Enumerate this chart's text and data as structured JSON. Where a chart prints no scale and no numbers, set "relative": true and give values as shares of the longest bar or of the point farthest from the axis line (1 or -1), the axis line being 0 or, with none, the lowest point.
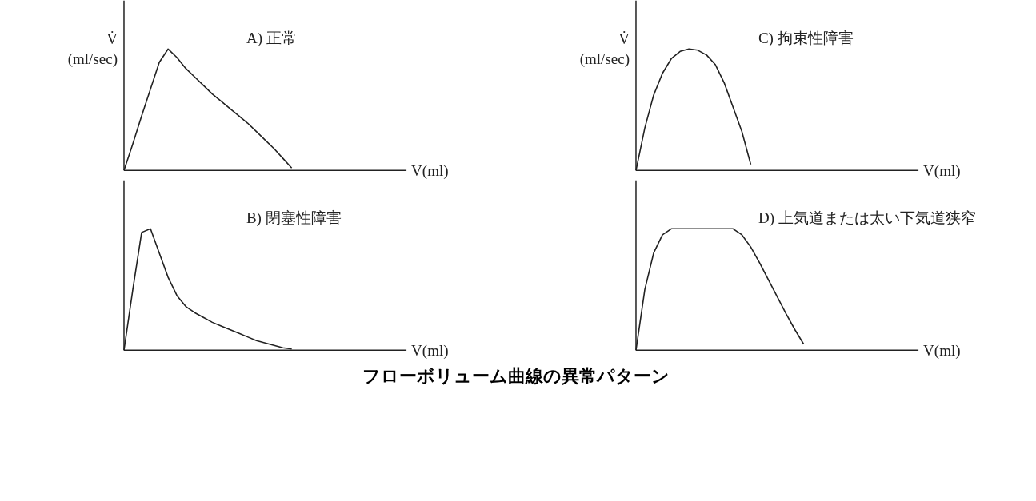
{
  "chart_data": [
    {
      "type": "line",
      "title": "A) 正常",
      "ylabel": "V̇\n(ml/sec)",
      "xlabel": "V(ml)",
      "relative": true,
      "grid": false,
      "categories": [
        null,
        null,
        null,
        null,
        null,
        null,
        null,
        null,
        null,
        null,
        null,
        null,
        null,
        null,
        null,
        null,
        null,
        null,
        null,
        null,
        null,
        null,
        null,
        null,
        null,
        null,
        null,
        null,
        null,
        null,
        null,
        null,
        null
      ],
      "series": [
        {
          "color": "#222222",
          "values": [
            0,
            0.22,
            0.45,
            0.67,
            0.89,
            1.0,
            0.93,
            0.84,
            0.77,
            0.7,
            0.63,
            0.57,
            0.51,
            0.45,
            0.39,
            0.32,
            0.25,
            0.18,
            0.1,
            0.02,
            null,
            null,
            null,
            null,
            null,
            null,
            null,
            null,
            null,
            null,
            null,
            null,
            null
          ]
        }
      ]
    },
    {
      "type": "line",
      "title": "C) 拘束性障害",
      "ylabel": "V̇\n(ml/sec)",
      "xlabel": "V(ml)",
      "relative": true,
      "grid": false,
      "categories": [
        null,
        null,
        null,
        null,
        null,
        null,
        null,
        null,
        null,
        null,
        null,
        null,
        null,
        null,
        null,
        null,
        null,
        null,
        null,
        null,
        null,
        null,
        null,
        null,
        null,
        null,
        null,
        null,
        null,
        null,
        null,
        null,
        null
      ],
      "series": [
        {
          "color": "#222222",
          "values": [
            0,
            0.35,
            0.62,
            0.8,
            0.92,
            0.98,
            1.0,
            0.99,
            0.95,
            0.87,
            0.72,
            0.52,
            0.32,
            0.05,
            null,
            null,
            null,
            null,
            null,
            null,
            null,
            null,
            null,
            null,
            null,
            null,
            null,
            null,
            null,
            null,
            null,
            null,
            null
          ]
        }
      ]
    },
    {
      "type": "line",
      "title": "B) 閉塞性障害",
      "xlabel": "V(ml)",
      "relative": true,
      "grid": false,
      "categories": [
        null,
        null,
        null,
        null,
        null,
        null,
        null,
        null,
        null,
        null,
        null,
        null,
        null,
        null,
        null,
        null,
        null,
        null,
        null,
        null,
        null,
        null,
        null,
        null,
        null,
        null,
        null,
        null,
        null,
        null,
        null,
        null,
        null
      ],
      "series": [
        {
          "color": "#222222",
          "values": [
            0,
            0.5,
            0.97,
            1.0,
            0.8,
            0.6,
            0.45,
            0.36,
            0.31,
            0.27,
            0.23,
            0.2,
            0.17,
            0.14,
            0.11,
            0.08,
            0.06,
            0.04,
            0.02,
            0.01,
            null,
            null,
            null,
            null,
            null,
            null,
            null,
            null,
            null,
            null,
            null,
            null,
            null
          ]
        }
      ]
    },
    {
      "type": "line",
      "title": "D) 上気道または太い下気道狭窄",
      "xlabel": "V(ml)",
      "relative": true,
      "grid": false,
      "annotations": [
        "フローボリューム曲線の異常パターン"
      ],
      "categories": [
        null,
        null,
        null,
        null,
        null,
        null,
        null,
        null,
        null,
        null,
        null,
        null,
        null,
        null,
        null,
        null,
        null,
        null,
        null,
        null,
        null,
        null,
        null,
        null,
        null,
        null,
        null,
        null,
        null,
        null,
        null,
        null,
        null
      ],
      "series": [
        {
          "color": "#222222",
          "values": [
            0,
            0.5,
            0.8,
            0.95,
            1.0,
            1.0,
            1.0,
            1.0,
            1.0,
            1.0,
            1.0,
            1.0,
            0.95,
            0.85,
            0.72,
            0.58,
            0.44,
            0.3,
            0.17,
            0.05,
            null,
            null,
            null,
            null,
            null,
            null,
            null,
            null,
            null,
            null,
            null,
            null,
            null
          ]
        }
      ]
    }
  ]
}
